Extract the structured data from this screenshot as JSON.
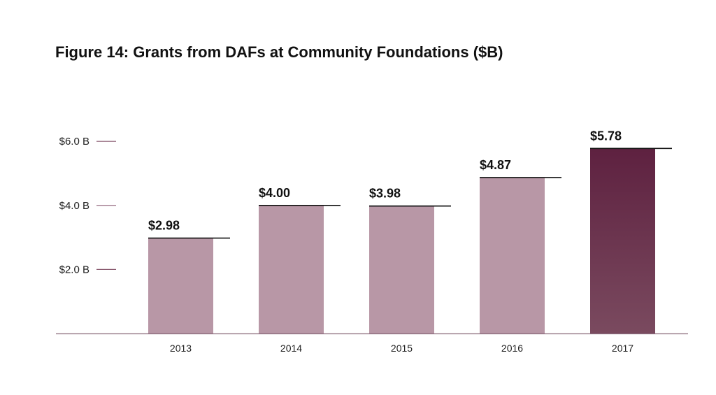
{
  "chart_data": {
    "type": "bar",
    "title": "Figure 14: Grants from DAFs at Community Foundations ($B)",
    "categories": [
      "2013",
      "2014",
      "2015",
      "2016",
      "2017"
    ],
    "values": [
      2.98,
      4.0,
      3.98,
      4.87,
      5.78
    ],
    "value_labels": [
      "$2.98",
      "$4.00",
      "$3.98",
      "$4.87",
      "$5.78"
    ],
    "y_ticks": [
      {
        "value": 2.0,
        "label": "$2.0 B"
      },
      {
        "value": 4.0,
        "label": "$4.0 B"
      },
      {
        "value": 6.0,
        "label": "$6.0 B"
      }
    ],
    "ylim": [
      0,
      6.0
    ],
    "xlabel": "",
    "ylabel": "",
    "grid": false,
    "legend": "none",
    "highlight_index": 4,
    "colors": {
      "bar": "#b897a6",
      "highlight_top": "#5e2140",
      "highlight_bottom": "#7a4a5f",
      "tick_mark": "#8a5a70",
      "axis": "#8a6a7a"
    }
  }
}
